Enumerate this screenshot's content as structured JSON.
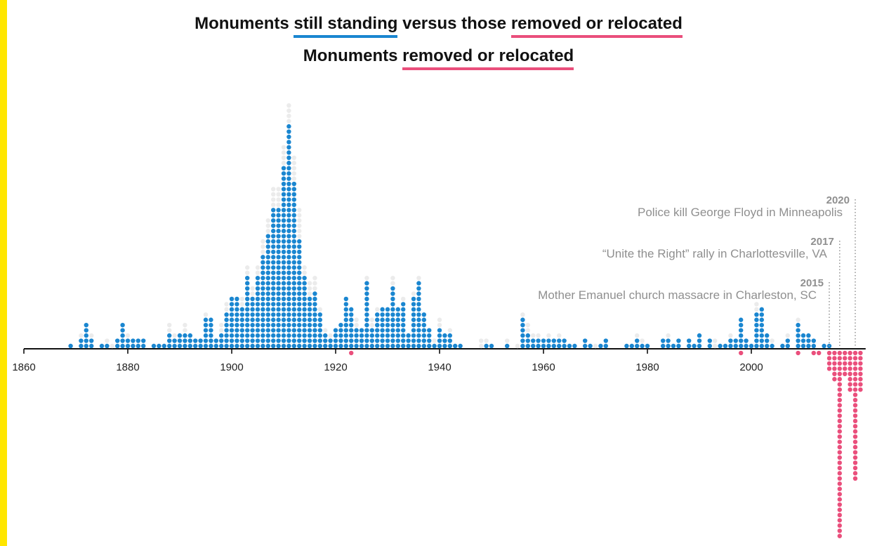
{
  "titles": {
    "line1": {
      "prefix": "Monuments ",
      "standing": "still standing",
      "middle": " versus those ",
      "removed": "removed or relocated"
    },
    "line2": {
      "prefix": "Monuments ",
      "removed": "removed or relocated"
    }
  },
  "colors": {
    "accent_bar": "#ffe600",
    "standing": "#1a86d0",
    "removed": "#ea4f7c",
    "ghost": "#ebebeb",
    "axis": "#111111",
    "annotation": "#8f8f8f"
  },
  "chart_data": {
    "type": "dot histogram",
    "x_ticks": [
      "1860",
      "1880",
      "1900",
      "1920",
      "1940",
      "1960",
      "1980",
      "2000"
    ],
    "xlim": [
      1860,
      2022
    ],
    "series": [
      {
        "name": "still standing",
        "years": [
          1869,
          1871,
          1872,
          1873,
          1875,
          1876,
          1878,
          1879,
          1880,
          1881,
          1882,
          1883,
          1885,
          1886,
          1887,
          1888,
          1889,
          1890,
          1891,
          1892,
          1893,
          1894,
          1895,
          1896,
          1897,
          1898,
          1899,
          1900,
          1901,
          1902,
          1903,
          1904,
          1905,
          1906,
          1907,
          1908,
          1909,
          1910,
          1911,
          1912,
          1913,
          1914,
          1915,
          1916,
          1917,
          1918,
          1919,
          1920,
          1921,
          1922,
          1923,
          1924,
          1925,
          1926,
          1927,
          1928,
          1929,
          1930,
          1931,
          1932,
          1933,
          1934,
          1935,
          1936,
          1937,
          1938,
          1939,
          1940,
          1941,
          1942,
          1943,
          1944,
          1949,
          1950,
          1953,
          1956,
          1957,
          1958,
          1959,
          1960,
          1961,
          1962,
          1963,
          1964,
          1965,
          1966,
          1968,
          1969,
          1971,
          1972,
          1976,
          1977,
          1978,
          1979,
          1980,
          1983,
          1984,
          1985,
          1986,
          1988,
          1989,
          1990,
          1992,
          1994,
          1995,
          1996,
          1997,
          1998,
          1999,
          2000,
          2001,
          2002,
          2003,
          2004,
          2006,
          2007,
          2009,
          2010,
          2011,
          2012,
          2014,
          2015
        ],
        "counts": [
          1,
          2,
          5,
          2,
          1,
          1,
          2,
          5,
          2,
          2,
          2,
          2,
          1,
          1,
          1,
          3,
          2,
          3,
          3,
          3,
          2,
          2,
          6,
          6,
          2,
          3,
          7,
          10,
          10,
          8,
          14,
          10,
          14,
          18,
          22,
          27,
          27,
          35,
          43,
          32,
          21,
          14,
          10,
          11,
          7,
          3,
          2,
          4,
          5,
          10,
          8,
          4,
          4,
          13,
          4,
          7,
          8,
          8,
          12,
          8,
          9,
          3,
          10,
          13,
          7,
          4,
          1,
          4,
          3,
          3,
          1,
          1,
          1,
          1,
          1,
          6,
          3,
          2,
          2,
          2,
          2,
          2,
          2,
          2,
          1,
          1,
          2,
          1,
          1,
          2,
          1,
          1,
          2,
          1,
          1,
          2,
          2,
          1,
          2,
          2,
          1,
          3,
          2,
          1,
          1,
          2,
          2,
          6,
          2,
          1,
          7,
          8,
          3,
          1,
          1,
          2,
          5,
          3,
          3,
          2,
          1,
          1
        ]
      },
      {
        "name": "removed or relocated",
        "years": [
          1923,
          1998,
          2009,
          2012,
          2013,
          2015,
          2016,
          2017,
          2018,
          2019,
          2020,
          2021
        ],
        "counts": [
          1,
          1,
          1,
          1,
          1,
          4,
          6,
          36,
          5,
          8,
          25,
          8
        ]
      },
      {
        "name": "",
        "years": [
          1871,
          1873,
          1876,
          1877,
          1880,
          1888,
          1889,
          1891,
          1895,
          1898,
          1899,
          1902,
          1903,
          1904,
          1905,
          1906,
          1907,
          1908,
          1909,
          1910,
          1911,
          1912,
          1913,
          1914,
          1915,
          1916,
          1917,
          1918,
          1919,
          1924,
          1926,
          1927,
          1928,
          1931,
          1933,
          1935,
          1936,
          1939,
          1940,
          1942,
          1948,
          1949,
          1953,
          1955,
          1956,
          1957,
          1958,
          1959,
          1961,
          1963,
          1970,
          1978,
          1979,
          1984,
          1993,
          1996,
          2001,
          2004,
          2007,
          2009
        ],
        "counts": [
          1,
          1,
          1,
          1,
          1,
          2,
          1,
          2,
          1,
          2,
          2,
          2,
          2,
          2,
          2,
          3,
          3,
          4,
          4,
          4,
          4,
          5,
          6,
          2,
          3,
          3,
          1,
          1,
          1,
          2,
          1,
          2,
          1,
          2,
          1,
          1,
          1,
          1,
          2,
          1,
          2,
          1,
          1,
          1,
          1,
          2,
          1,
          1,
          1,
          1,
          1,
          1,
          1,
          1,
          2,
          1,
          2,
          1,
          1,
          1
        ]
      }
    ],
    "annotations": [
      {
        "year": 2015,
        "year_label": "2015",
        "text": "Mother Emanuel church massacre in Charleston, SC"
      },
      {
        "year": 2017,
        "year_label": "2017",
        "text": "“Unite the Right” rally in Charlottesville, VA"
      },
      {
        "year": 2020,
        "year_label": "2020",
        "text": "Police kill George Floyd in Minneapolis"
      }
    ]
  }
}
